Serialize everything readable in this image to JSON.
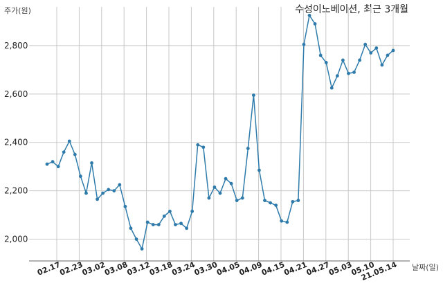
{
  "chart_data": {
    "type": "line",
    "title": "수성이노베이션, 최근 3개월",
    "ylabel": "주가(원)",
    "xlabel": "날짜(일)",
    "ylim": [
      1910,
      2960
    ],
    "yticks": [
      2000,
      2200,
      2400,
      2600,
      2800
    ],
    "ytick_labels": [
      "2,000",
      "2,200",
      "2,400",
      "2,600",
      "2,800"
    ],
    "grid": true,
    "xtick_labels": [
      "02.17",
      "02.23",
      "03.02",
      "03.08",
      "03.12",
      "03.18",
      "03.24",
      "03.30",
      "04.05",
      "04.09",
      "04.15",
      "04.21",
      "04.27",
      "05.03",
      "05.10",
      "21.05.14"
    ],
    "series": [
      {
        "color": "#2e7bab",
        "values": [
          2310,
          2320,
          2300,
          2360,
          2405,
          2350,
          2260,
          2190,
          2315,
          2165,
          2190,
          2205,
          2200,
          2225,
          2135,
          2045,
          2000,
          1960,
          2070,
          2060,
          2060,
          2095,
          2115,
          2060,
          2065,
          2045,
          2115,
          2390,
          2380,
          2170,
          2215,
          2190,
          2250,
          2230,
          2160,
          2170,
          2375,
          2595,
          2285,
          2160,
          2150,
          2140,
          2075,
          2070,
          2155,
          2160,
          2805,
          2925,
          2890,
          2760,
          2730,
          2625,
          2675,
          2740,
          2685,
          2690,
          2740,
          2805,
          2770,
          2790,
          2720,
          2760,
          2780
        ]
      }
    ]
  }
}
